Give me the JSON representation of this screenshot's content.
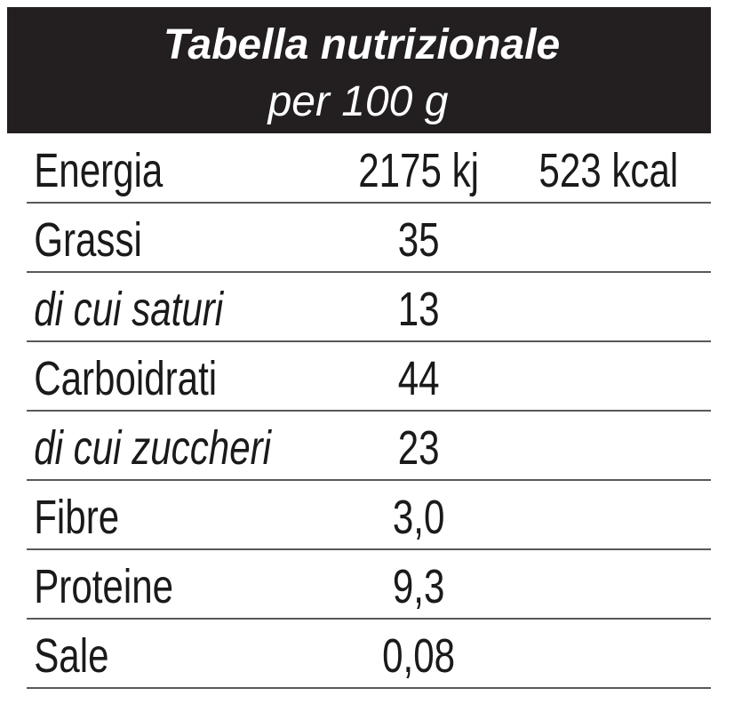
{
  "header": {
    "title": "Tabella nutrizionale",
    "subtitle": "per 100 g"
  },
  "table": {
    "rows": [
      [
        "Energia",
        "2175 kj",
        "523 kcal"
      ],
      [
        "Grassi",
        "35"
      ],
      [
        "di cui saturi",
        "13"
      ],
      [
        "Carboidrati",
        "44"
      ],
      [
        "di cui zuccheri",
        "23"
      ],
      [
        "Fibre",
        "3,0"
      ],
      [
        "Proteine",
        "9,3"
      ],
      [
        "Sale",
        "0,08"
      ]
    ]
  }
}
